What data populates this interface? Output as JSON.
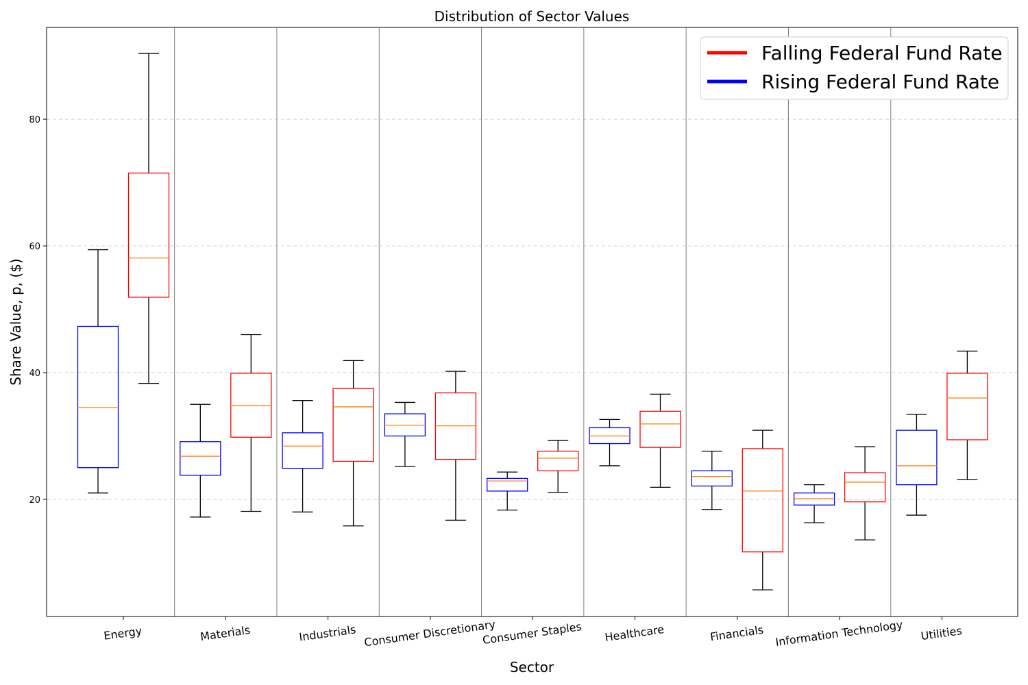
{
  "chart_data": {
    "type": "box",
    "title": "Distribution of Sector Values",
    "xlabel": "Sector",
    "ylabel": "Share Value, p, ($)",
    "ylim": [
      1.5,
      94.5
    ],
    "yticks": [
      20,
      40,
      60,
      80
    ],
    "grid": "y dashed",
    "legend_position": "top-right",
    "colors": {
      "rising": "#0000ff",
      "falling": "#ff0000",
      "median": "#ff7f0e",
      "whisker": "#000000",
      "separator": "#808080",
      "grid": "#d3d3d3"
    },
    "legend": [
      {
        "key": "falling",
        "label": "Falling Federal Fund Rate"
      },
      {
        "key": "rising",
        "label": "Rising Federal Fund Rate"
      }
    ],
    "categories": [
      "Energy",
      "Materials",
      "Industrials",
      "Consumer Discretionary",
      "Consumer Staples",
      "Healthcare",
      "Financials",
      "Information Technology",
      "Utilities"
    ],
    "series": [
      {
        "name": "Rising Federal Fund Rate",
        "key": "rising",
        "boxes": [
          {
            "whisker_low": 21.0,
            "q1": 25.0,
            "median": 34.5,
            "q3": 47.3,
            "whisker_high": 59.4
          },
          {
            "whisker_low": 17.2,
            "q1": 23.8,
            "median": 26.8,
            "q3": 29.1,
            "whisker_high": 35.0
          },
          {
            "whisker_low": 18.0,
            "q1": 24.9,
            "median": 28.4,
            "q3": 30.5,
            "whisker_high": 35.6
          },
          {
            "whisker_low": 25.2,
            "q1": 30.0,
            "median": 31.7,
            "q3": 33.5,
            "whisker_high": 35.3
          },
          {
            "whisker_low": 18.3,
            "q1": 21.3,
            "median": 22.9,
            "q3": 23.3,
            "whisker_high": 24.3
          },
          {
            "whisker_low": 25.3,
            "q1": 28.8,
            "median": 30.0,
            "q3": 31.3,
            "whisker_high": 32.6
          },
          {
            "whisker_low": 18.4,
            "q1": 22.1,
            "median": 23.6,
            "q3": 24.5,
            "whisker_high": 27.6
          },
          {
            "whisker_low": 16.3,
            "q1": 19.1,
            "median": 20.1,
            "q3": 21.0,
            "whisker_high": 22.3
          },
          {
            "whisker_low": 17.5,
            "q1": 22.3,
            "median": 25.3,
            "q3": 30.9,
            "whisker_high": 33.4
          }
        ]
      },
      {
        "name": "Falling Federal Fund Rate",
        "key": "falling",
        "boxes": [
          {
            "whisker_low": 38.3,
            "q1": 51.9,
            "median": 58.1,
            "q3": 71.5,
            "whisker_high": 90.4
          },
          {
            "whisker_low": 18.1,
            "q1": 29.8,
            "median": 34.8,
            "q3": 39.9,
            "whisker_high": 46.0
          },
          {
            "whisker_low": 15.8,
            "q1": 26.0,
            "median": 34.6,
            "q3": 37.5,
            "whisker_high": 41.9
          },
          {
            "whisker_low": 16.7,
            "q1": 26.3,
            "median": 31.6,
            "q3": 36.8,
            "whisker_high": 40.2
          },
          {
            "whisker_low": 21.1,
            "q1": 24.5,
            "median": 26.5,
            "q3": 27.6,
            "whisker_high": 29.3
          },
          {
            "whisker_low": 21.9,
            "q1": 28.2,
            "median": 31.9,
            "q3": 33.9,
            "whisker_high": 36.6
          },
          {
            "whisker_low": 5.7,
            "q1": 11.7,
            "median": 21.3,
            "q3": 28.0,
            "whisker_high": 30.9
          },
          {
            "whisker_low": 13.6,
            "q1": 19.6,
            "median": 22.7,
            "q3": 24.2,
            "whisker_high": 28.3
          },
          {
            "whisker_low": 23.1,
            "q1": 29.4,
            "median": 36.0,
            "q3": 39.9,
            "whisker_high": 43.4
          }
        ]
      }
    ]
  }
}
